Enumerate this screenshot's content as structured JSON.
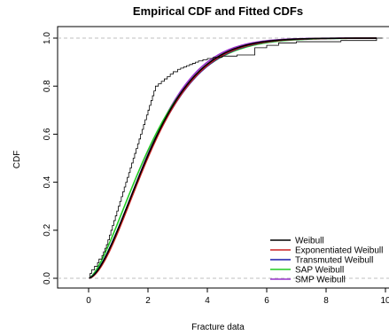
{
  "chart_data": {
    "type": "line",
    "title": "Empirical CDF and Fitted CDFs",
    "xlabel": "Fracture data",
    "ylabel": "CDF",
    "xlim": [
      -1,
      10
    ],
    "ylim": [
      0,
      1
    ],
    "x_ticks": [
      "0",
      "2",
      "4",
      "6",
      "8",
      "10"
    ],
    "y_ticks": [
      "0.0",
      "0.2",
      "0.4",
      "0.6",
      "0.8",
      "1.0"
    ],
    "reference_lines_y": [
      0,
      1
    ],
    "legend_position": "bottom-right",
    "grid": false,
    "empirical": {
      "x": [
        0.05,
        0.1,
        0.2,
        0.3,
        0.35,
        0.45,
        0.5,
        0.55,
        0.6,
        0.65,
        0.7,
        0.75,
        0.8,
        0.85,
        0.9,
        0.95,
        1.0,
        1.05,
        1.1,
        1.15,
        1.2,
        1.25,
        1.3,
        1.35,
        1.4,
        1.45,
        1.5,
        1.55,
        1.6,
        1.65,
        1.7,
        1.75,
        1.8,
        1.85,
        1.9,
        1.95,
        2.0,
        2.05,
        2.1,
        2.15,
        2.2,
        2.25,
        2.35,
        2.45,
        2.55,
        2.65,
        2.75,
        2.85,
        3.0,
        3.1,
        3.2,
        3.3,
        3.4,
        3.5,
        3.6,
        3.7,
        3.85,
        4.0,
        4.2,
        4.5,
        5.0,
        5.6,
        6.0,
        6.4,
        7.0,
        8.5,
        9.7
      ],
      "y": [
        0.02,
        0.035,
        0.05,
        0.065,
        0.08,
        0.095,
        0.11,
        0.125,
        0.14,
        0.16,
        0.18,
        0.2,
        0.22,
        0.24,
        0.26,
        0.28,
        0.3,
        0.32,
        0.34,
        0.36,
        0.38,
        0.4,
        0.42,
        0.44,
        0.46,
        0.48,
        0.5,
        0.52,
        0.54,
        0.56,
        0.58,
        0.6,
        0.62,
        0.64,
        0.66,
        0.68,
        0.7,
        0.72,
        0.74,
        0.76,
        0.78,
        0.8,
        0.81,
        0.82,
        0.83,
        0.84,
        0.85,
        0.86,
        0.87,
        0.875,
        0.88,
        0.885,
        0.89,
        0.895,
        0.9,
        0.905,
        0.91,
        0.915,
        0.92,
        0.925,
        0.93,
        0.96,
        0.97,
        0.98,
        0.985,
        0.99,
        1.0
      ]
    },
    "series": [
      {
        "name": "Weibull",
        "color": "#000000",
        "shape": 1.63,
        "scale": 2.45,
        "alpha": 1.0
      },
      {
        "name": "Exponentiated Weibull",
        "color": "#cc2222",
        "shape": 1.55,
        "scale": 2.35,
        "alpha": 1.12
      },
      {
        "name": "Transmuted Weibull",
        "color": "#1a1aaa",
        "shape": 1.6,
        "scale": 2.48,
        "alpha": 1.0
      },
      {
        "name": "SAP Weibull",
        "color": "#22cc22",
        "shape": 1.5,
        "scale": 2.4,
        "alpha": 1.0
      },
      {
        "name": "SMP Weibull",
        "color": "#9933cc",
        "shape": 1.66,
        "scale": 2.42,
        "alpha": 1.0
      }
    ]
  }
}
